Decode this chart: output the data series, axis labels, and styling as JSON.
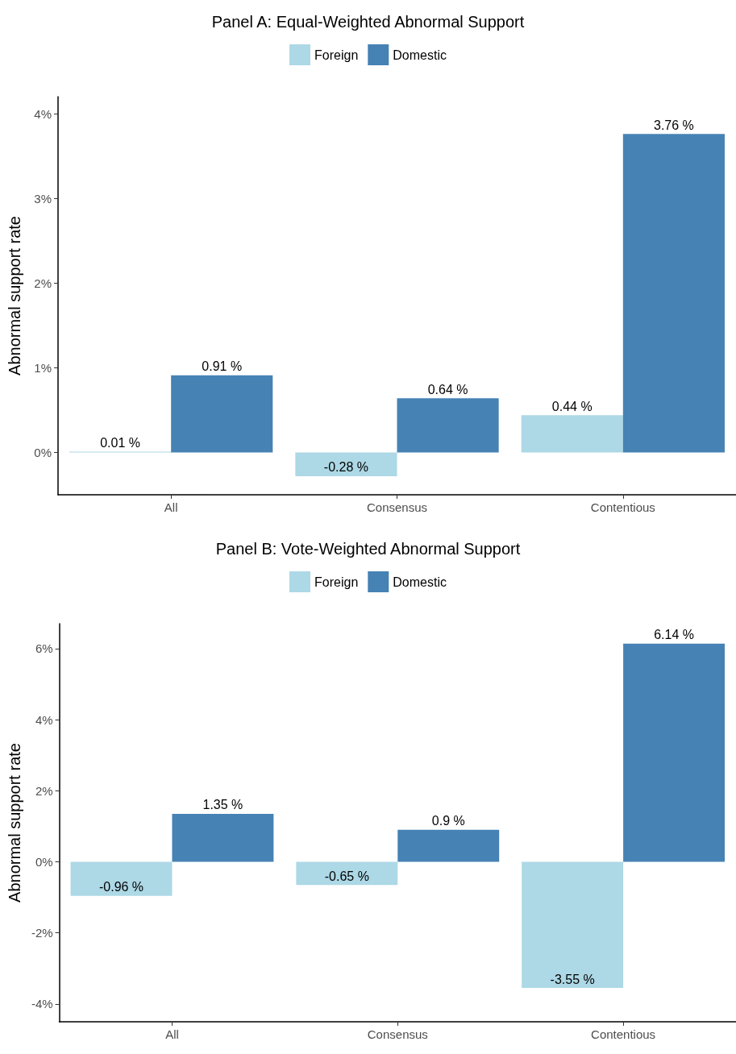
{
  "chart_data": [
    {
      "type": "bar",
      "title": "Panel A: Equal-Weighted Abnormal Support",
      "ylabel": "Abnormal support rate",
      "categories": [
        "All",
        "Consensus",
        "Contentious"
      ],
      "series": [
        {
          "name": "Foreign",
          "color": "#add8e6",
          "values": [
            0.01,
            -0.28,
            0.44
          ],
          "value_labels": [
            "0.01 %",
            "-0.28 %",
            "0.44 %"
          ]
        },
        {
          "name": "Domestic",
          "color": "#4682b4",
          "values": [
            0.91,
            0.64,
            3.76
          ],
          "value_labels": [
            "0.91 %",
            "0.64 %",
            "3.76 %"
          ]
        }
      ],
      "ylim": [
        -0.5,
        4.2
      ],
      "yticks": [
        {
          "value": 0,
          "label": "0%"
        },
        {
          "value": 1,
          "label": "1%"
        },
        {
          "value": 2,
          "label": "2%"
        },
        {
          "value": 3,
          "label": "3%"
        },
        {
          "value": 4,
          "label": "4%"
        }
      ],
      "grid": false,
      "legend": "top"
    },
    {
      "type": "bar",
      "title": "Panel B: Vote-Weighted Abnormal Support",
      "ylabel": "Abnormal support rate",
      "categories": [
        "All",
        "Consensus",
        "Contentious"
      ],
      "series": [
        {
          "name": "Foreign",
          "color": "#add8e6",
          "values": [
            -0.96,
            -0.65,
            -3.55
          ],
          "value_labels": [
            "-0.96 %",
            "-0.65 %",
            "-3.55 %"
          ]
        },
        {
          "name": "Domestic",
          "color": "#4682b4",
          "values": [
            1.35,
            0.9,
            6.14
          ],
          "value_labels": [
            "1.35 %",
            "0.9 %",
            "6.14 %"
          ]
        }
      ],
      "ylim": [
        -4.5,
        6.7
      ],
      "yticks": [
        {
          "value": -4,
          "label": "-4%"
        },
        {
          "value": -2,
          "label": "-2%"
        },
        {
          "value": 0,
          "label": "0%"
        },
        {
          "value": 2,
          "label": "2%"
        },
        {
          "value": 4,
          "label": "4%"
        },
        {
          "value": 6,
          "label": "6%"
        }
      ],
      "grid": false,
      "legend": "top"
    }
  ]
}
